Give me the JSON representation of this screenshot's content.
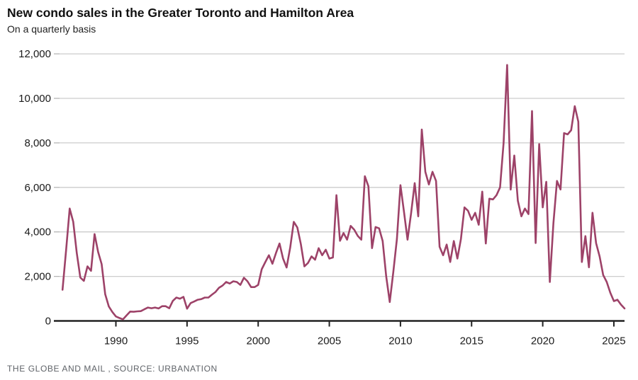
{
  "header": {
    "title": "New condo sales in the Greater Toronto and Hamilton Area",
    "subtitle": "On a quarterly basis"
  },
  "footer": {
    "credit": "THE GLOBE AND MAIL , SOURCE: URBANATION"
  },
  "chart_data": {
    "type": "line",
    "title": "New condo sales in the Greater Toronto and Hamilton Area",
    "subtitle": "On a quarterly basis",
    "series_name": "New condo sales",
    "frequency": "quarterly",
    "start_year": 1986,
    "start_quarter": "Q1",
    "end_year": 2025,
    "end_quarter": "Q3",
    "ylim": [
      0,
      12000
    ],
    "y_step": 2000,
    "y_tick_labels": [
      "0",
      "2,000",
      "4,000",
      "6,000",
      "8,000",
      "10,000",
      "12,000"
    ],
    "x_tick_years": [
      1990,
      1995,
      2000,
      2005,
      2010,
      2015,
      2020,
      2025
    ],
    "x_tick_labels": [
      "1990",
      "1995",
      "2000",
      "2005",
      "2010",
      "2015",
      "2020",
      "2025"
    ],
    "grid": "horizontal",
    "legend": "none",
    "line_color": "#9d4268",
    "grid_color": "#cccccc",
    "axis_color": "#222222",
    "tick_label_color": "#1a1a1a",
    "values": [
      1400,
      3200,
      5050,
      4450,
      3050,
      1950,
      1800,
      2450,
      2250,
      3900,
      3100,
      2550,
      1200,
      650,
      400,
      200,
      130,
      70,
      250,
      420,
      410,
      430,
      440,
      520,
      600,
      570,
      600,
      560,
      660,
      660,
      570,
      900,
      1050,
      1000,
      1080,
      550,
      800,
      870,
      950,
      980,
      1050,
      1050,
      1180,
      1300,
      1490,
      1590,
      1750,
      1680,
      1780,
      1750,
      1620,
      1940,
      1780,
      1520,
      1520,
      1620,
      2320,
      2640,
      2950,
      2570,
      3050,
      3480,
      2800,
      2400,
      3300,
      4450,
      4200,
      3450,
      2450,
      2600,
      2900,
      2750,
      3270,
      2950,
      3200,
      2800,
      2850,
      5650,
      3600,
      3950,
      3650,
      4270,
      4100,
      3820,
      3650,
      6500,
      6050,
      3270,
      4220,
      4160,
      3590,
      2000,
      850,
      2220,
      3680,
      6100,
      4900,
      3650,
      4860,
      6190,
      4700,
      8600,
      6700,
      6130,
      6700,
      6290,
      3330,
      2950,
      3430,
      2650,
      3590,
      2800,
      3680,
      5100,
      4950,
      4540,
      4860,
      4320,
      5810,
      3480,
      5490,
      5460,
      5650,
      6000,
      8000,
      11500,
      5900,
      7430,
      5400,
      4700,
      5050,
      4800,
      9430,
      3500,
      7950,
      5100,
      6250,
      1750,
      4400,
      6290,
      5905,
      8440,
      8380,
      8570,
      9650,
      8950,
      2650,
      3810,
      2410,
      4860,
      3490,
      2890,
      2060,
      1750,
      1270,
      890,
      950,
      730,
      560
    ]
  }
}
